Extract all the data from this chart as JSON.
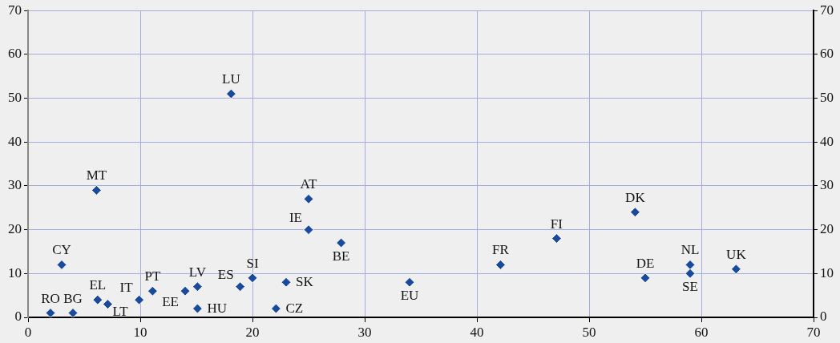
{
  "chart_data": {
    "type": "scatter",
    "marker": "diamond",
    "grid": true,
    "legend": false,
    "x": [
      2,
      4,
      6.2,
      7.1,
      6.1,
      3,
      9.9,
      11.1,
      14,
      15.1,
      15.1,
      18.9,
      20,
      23,
      22.1,
      18.1,
      25,
      25,
      27.9,
      34,
      42.1,
      47.1,
      54.1,
      55,
      59,
      59,
      63.1
    ],
    "series": [
      {
        "color": "#1a4a9c",
        "values": [
          1,
          1,
          4,
          3,
          29,
          12,
          4,
          6,
          6,
          7,
          2,
          7,
          9,
          8,
          2,
          51,
          27,
          20,
          17,
          8,
          12,
          18,
          24,
          9,
          12,
          10,
          11
        ]
      }
    ],
    "xlim": [
      0,
      70
    ],
    "xticks": [
      0,
      10,
      20,
      30,
      40,
      50,
      60,
      70
    ],
    "ylim": [
      0,
      70
    ],
    "yticks": [
      0,
      10,
      20,
      30,
      40,
      50,
      60,
      70
    ],
    "y2lim": [
      0,
      70
    ],
    "y2ticks": [
      0,
      10,
      20,
      30,
      40,
      50,
      60,
      70
    ],
    "annotations": [
      {
        "text": "RO",
        "x": 2,
        "y": 1
      },
      {
        "text": "BG",
        "x": 4,
        "y": 1
      },
      {
        "text": "EL",
        "x": 6.2,
        "y": 4
      },
      {
        "text": "LT",
        "x": 7.1,
        "y": 3
      },
      {
        "text": "MT",
        "x": 6.1,
        "y": 29
      },
      {
        "text": "CY",
        "x": 3,
        "y": 12
      },
      {
        "text": "IT",
        "x": 9.9,
        "y": 4
      },
      {
        "text": "PT",
        "x": 11.1,
        "y": 6
      },
      {
        "text": "EE",
        "x": 14,
        "y": 6
      },
      {
        "text": "LV",
        "x": 15.1,
        "y": 7
      },
      {
        "text": "HU",
        "x": 15.1,
        "y": 2
      },
      {
        "text": "ES",
        "x": 18.9,
        "y": 7
      },
      {
        "text": "SI",
        "x": 20,
        "y": 9
      },
      {
        "text": "SK",
        "x": 23,
        "y": 8
      },
      {
        "text": "CZ",
        "x": 22.1,
        "y": 2
      },
      {
        "text": "LU",
        "x": 18.1,
        "y": 51
      },
      {
        "text": "AT",
        "x": 25,
        "y": 27
      },
      {
        "text": "IE",
        "x": 25,
        "y": 20
      },
      {
        "text": "BE",
        "x": 27.9,
        "y": 17
      },
      {
        "text": "EU",
        "x": 34,
        "y": 8
      },
      {
        "text": "FR",
        "x": 42.1,
        "y": 12
      },
      {
        "text": "FI",
        "x": 47.1,
        "y": 18
      },
      {
        "text": "DK",
        "x": 54.1,
        "y": 24
      },
      {
        "text": "DE",
        "x": 55,
        "y": 9
      },
      {
        "text": "NL",
        "x": 59,
        "y": 12
      },
      {
        "text": "SE",
        "x": 59,
        "y": 10
      },
      {
        "text": "UK",
        "x": 63.1,
        "y": 11
      }
    ]
  }
}
